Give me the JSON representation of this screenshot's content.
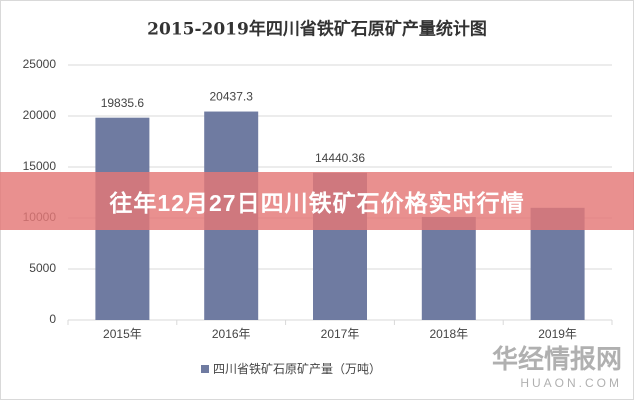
{
  "chart_data": {
    "type": "bar",
    "title": "2015-2019年四川省铁矿石原矿产量统计图",
    "categories": [
      "2015年",
      "2016年",
      "2017年",
      "2018年",
      "2019年"
    ],
    "series": [
      {
        "name": "四川省铁矿石原矿产量（万吨）",
        "color": "#6f7ba1",
        "values": [
          19835.6,
          20437.3,
          14440.36,
          10100,
          11000
        ]
      }
    ],
    "ylim": [
      0,
      25000
    ],
    "yticks": [
      0,
      5000,
      10000,
      15000,
      20000,
      25000
    ],
    "grid": true
  },
  "banner": "往年12月27日四川铁矿石价格实时行情",
  "watermark": {
    "name": "华经情报网",
    "site": "HUAON.COM"
  }
}
